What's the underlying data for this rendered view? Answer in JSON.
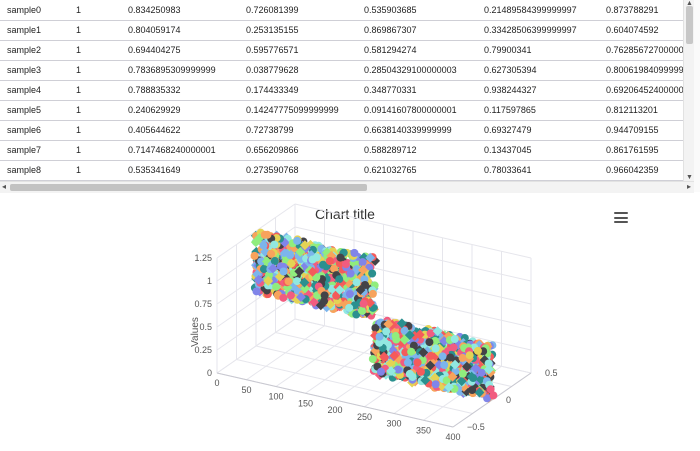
{
  "table": {
    "rows": [
      [
        "sample0",
        "1",
        "0.834250983",
        "0.726081399",
        "0.535903685",
        "0.21489584399999997",
        "0.873788291"
      ],
      [
        "sample1",
        "1",
        "0.804059174",
        "0.253135155",
        "0.869867307",
        "0.33428506399999997",
        "0.604074592"
      ],
      [
        "sample2",
        "1",
        "0.694404275",
        "0.595776571",
        "0.581294274",
        "0.79900341",
        "0.76285672700000"
      ],
      [
        "sample3",
        "1",
        "0.7836895309999999",
        "0.038779628",
        "0.28504329100000003",
        "0.627305394",
        "0.80061984099999"
      ],
      [
        "sample4",
        "1",
        "0.788835332",
        "0.174433349",
        "0.348770331",
        "0.938244327",
        "0.69206452400000"
      ],
      [
        "sample5",
        "1",
        "0.240629929",
        "0.14247775099999999",
        "0.09141607800000001",
        "0.117597865",
        "0.812113201"
      ],
      [
        "sample6",
        "1",
        "0.405644622",
        "0.72738799",
        "0.6638140339999999",
        "0.69327479",
        "0.944709155"
      ],
      [
        "sample7",
        "1",
        "0.7147468240000001",
        "0.656209866",
        "0.588289712",
        "0.13437045",
        "0.861761595"
      ],
      [
        "sample8",
        "1",
        "0.535341649",
        "0.273590768",
        "0.621032765",
        "0.78033641",
        "0.966042359"
      ]
    ]
  },
  "chart": {
    "title": "Chart title",
    "menu_icon": "hamburger-menu-icon"
  },
  "chart_data": {
    "type": "scatter",
    "subtype": "3d-scatter",
    "title": "Chart title",
    "ylabel": "Values",
    "x_ticks": [
      "0",
      "50",
      "100",
      "150",
      "200",
      "250",
      "300",
      "350",
      "400"
    ],
    "y_ticks": [
      "0",
      "0.25",
      "0.5",
      "0.75",
      "1",
      "1.25"
    ],
    "z_ticks": [
      "−0.5",
      "0",
      "0.5"
    ],
    "x_range": [
      0,
      400
    ],
    "y_range": [
      0,
      1.25
    ],
    "z_range": [
      -0.5,
      0.5
    ],
    "point_colors": [
      "#7cb5ec",
      "#434348",
      "#90ed7d",
      "#f7a35c",
      "#8085e9",
      "#f15c80",
      "#e4d354",
      "#2b908f",
      "#f45b5b",
      "#91e8e1"
    ],
    "clusters": [
      {
        "x_range": [
          200,
          400
        ],
        "y_range": [
          0,
          0.6
        ],
        "z": 0
      },
      {
        "x_range": [
          0,
          200
        ],
        "y_range": [
          0.6,
          1.25
        ],
        "z": 0
      }
    ]
  }
}
